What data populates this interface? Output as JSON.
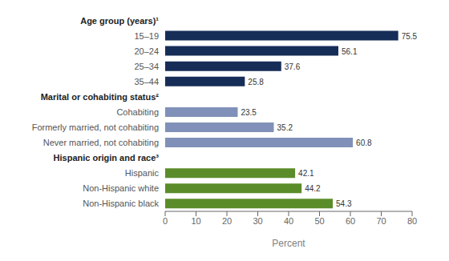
{
  "chart_data": {
    "type": "bar",
    "orientation": "horizontal",
    "categories": [
      "Age group (years)¹",
      "15–19",
      "20–24",
      "25–34",
      "35–44",
      "Marital or cohabiting status²",
      "Cohabiting",
      "Formerly married, not cohabiting",
      "Never married, not cohabiting",
      "Hispanic origin and race³",
      "Hispanic",
      "Non-Hispanic white",
      "Non-Hispanic black"
    ],
    "values": [
      null,
      75.5,
      56.1,
      37.6,
      25.8,
      null,
      23.5,
      35.2,
      60.8,
      null,
      42.1,
      44.2,
      54.3
    ],
    "colors": [
      null,
      "#162d57",
      "#162d57",
      "#162d57",
      "#162d57",
      null,
      "#8090b8",
      "#8090b8",
      "#8090b8",
      null,
      "#5b8c2a",
      "#5b8c2a",
      "#5b8c2a"
    ],
    "xlabel": "Percent",
    "xlim": [
      0,
      80
    ],
    "xticks": [
      0,
      10,
      20,
      30,
      40,
      50,
      60,
      70,
      80
    ],
    "data_labels": true,
    "grid": false
  }
}
